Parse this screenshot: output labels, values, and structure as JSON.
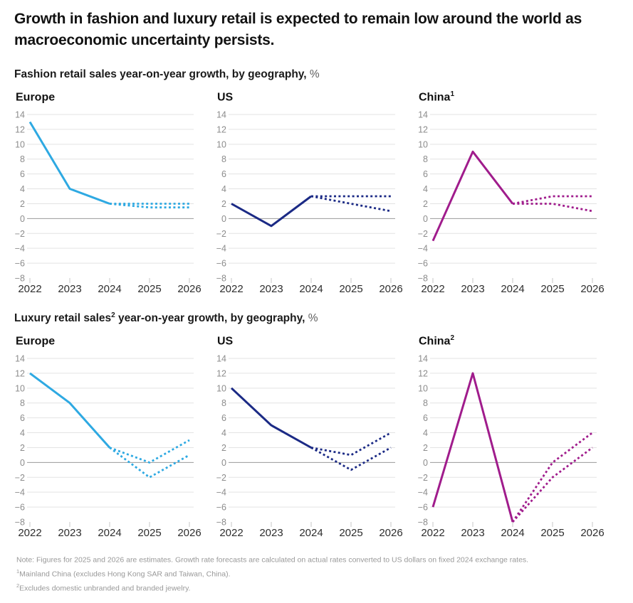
{
  "page": {
    "title": "Growth in fashion and luxury retail is expected to remain low around the world as macroeconomic uncertainty persists."
  },
  "sections": [
    {
      "prefix": "Fashion retail sales year-on-year growth, by geography,",
      "sup": "",
      "suffix": "",
      "unit": "%"
    },
    {
      "prefix": "Luxury retail sales",
      "sup": "2",
      "suffix": " year-on-year growth, by geography,",
      "unit": "%"
    }
  ],
  "theme": {
    "gridline": "#e3e3e3",
    "zero_line": "#9a9a9a",
    "tick": "#c7c7c7",
    "axis_label": "#8c8c8c",
    "year_label": "#2e2e2e",
    "europe_blue": "#2ea9e2",
    "us_navy": "#1b2a85",
    "china_magenta": "#a01c8c"
  },
  "chart_data": [
    {
      "type": "line",
      "section": "Fashion retail sales",
      "region": "Europe",
      "region_sup": "",
      "x": [
        2022,
        2023,
        2024,
        2025,
        2026
      ],
      "ylim": [
        -8,
        14
      ],
      "ytick_step": 2,
      "grid": true,
      "legend": "none",
      "color": "#2ea9e2",
      "series": [
        {
          "name": "actual",
          "style": "solid",
          "values": [
            13,
            4,
            2,
            null,
            null
          ]
        },
        {
          "name": "estimate-upper",
          "style": "dotted",
          "values": [
            null,
            null,
            2,
            2,
            2
          ]
        },
        {
          "name": "estimate-lower",
          "style": "dotted",
          "values": [
            null,
            null,
            2,
            1.5,
            1.5
          ]
        }
      ]
    },
    {
      "type": "line",
      "section": "Fashion retail sales",
      "region": "US",
      "region_sup": "",
      "x": [
        2022,
        2023,
        2024,
        2025,
        2026
      ],
      "ylim": [
        -8,
        14
      ],
      "ytick_step": 2,
      "grid": true,
      "legend": "none",
      "color": "#1b2a85",
      "series": [
        {
          "name": "actual",
          "style": "solid",
          "values": [
            2,
            -1,
            3,
            null,
            null
          ]
        },
        {
          "name": "estimate-upper",
          "style": "dotted",
          "values": [
            null,
            null,
            3,
            3,
            3
          ]
        },
        {
          "name": "estimate-lower",
          "style": "dotted",
          "values": [
            null,
            null,
            3,
            2,
            1
          ]
        }
      ]
    },
    {
      "type": "line",
      "section": "Fashion retail sales",
      "region": "China",
      "region_sup": "1",
      "x": [
        2022,
        2023,
        2024,
        2025,
        2026
      ],
      "ylim": [
        -8,
        14
      ],
      "ytick_step": 2,
      "grid": true,
      "legend": "none",
      "color": "#a01c8c",
      "series": [
        {
          "name": "actual",
          "style": "solid",
          "values": [
            -3,
            9,
            2,
            null,
            null
          ]
        },
        {
          "name": "estimate-upper",
          "style": "dotted",
          "values": [
            null,
            null,
            2,
            3,
            3
          ]
        },
        {
          "name": "estimate-lower",
          "style": "dotted",
          "values": [
            null,
            null,
            2,
            2,
            1
          ]
        }
      ]
    },
    {
      "type": "line",
      "section": "Luxury retail sales",
      "region": "Europe",
      "region_sup": "",
      "x": [
        2022,
        2023,
        2024,
        2025,
        2026
      ],
      "ylim": [
        -8,
        14
      ],
      "ytick_step": 2,
      "grid": true,
      "legend": "none",
      "color": "#2ea9e2",
      "series": [
        {
          "name": "actual",
          "style": "solid",
          "values": [
            12,
            8,
            2,
            null,
            null
          ]
        },
        {
          "name": "estimate-upper",
          "style": "dotted",
          "values": [
            null,
            null,
            2,
            0,
            3
          ]
        },
        {
          "name": "estimate-lower",
          "style": "dotted",
          "values": [
            null,
            null,
            2,
            -2,
            1
          ]
        }
      ]
    },
    {
      "type": "line",
      "section": "Luxury retail sales",
      "region": "US",
      "region_sup": "",
      "x": [
        2022,
        2023,
        2024,
        2025,
        2026
      ],
      "ylim": [
        -8,
        14
      ],
      "ytick_step": 2,
      "grid": true,
      "legend": "none",
      "color": "#1b2a85",
      "series": [
        {
          "name": "actual",
          "style": "solid",
          "values": [
            10,
            5,
            2,
            null,
            null
          ]
        },
        {
          "name": "estimate-upper",
          "style": "dotted",
          "values": [
            null,
            null,
            2,
            1,
            4
          ]
        },
        {
          "name": "estimate-lower",
          "style": "dotted",
          "values": [
            null,
            null,
            2,
            -1,
            2
          ]
        }
      ]
    },
    {
      "type": "line",
      "section": "Luxury retail sales",
      "region": "China",
      "region_sup": "2",
      "x": [
        2022,
        2023,
        2024,
        2025,
        2026
      ],
      "ylim": [
        -8,
        14
      ],
      "ytick_step": 2,
      "grid": true,
      "legend": "none",
      "color": "#a01c8c",
      "series": [
        {
          "name": "actual",
          "style": "solid",
          "values": [
            -6,
            12,
            -8,
            null,
            null
          ]
        },
        {
          "name": "estimate-upper",
          "style": "dotted",
          "values": [
            null,
            null,
            -8,
            0,
            4
          ]
        },
        {
          "name": "estimate-lower",
          "style": "dotted",
          "values": [
            null,
            null,
            -8,
            -2,
            2
          ]
        }
      ]
    }
  ],
  "footnotes": [
    {
      "marker": "",
      "text": "Note: Figures for 2025 and 2026 are estimates. Growth rate forecasts are calculated on actual rates converted to US dollars on fixed 2024 exchange rates."
    },
    {
      "marker": "1",
      "text": "Mainland China (excludes Hong Kong SAR and Taiwan, China)."
    },
    {
      "marker": "2",
      "text": "Excludes domestic unbranded and branded jewelry."
    }
  ]
}
